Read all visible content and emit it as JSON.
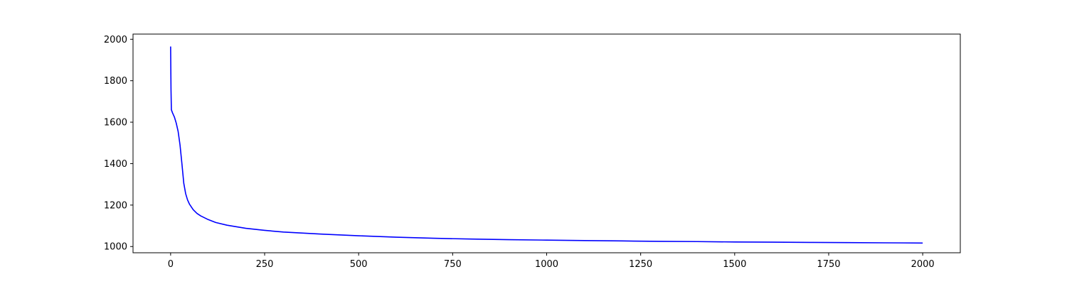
{
  "chart_data": {
    "type": "line",
    "title": "",
    "xlabel": "",
    "ylabel": "",
    "xlim": [
      -100,
      2100
    ],
    "ylim": [
      970,
      2025
    ],
    "grid": false,
    "x_ticks": [
      0,
      250,
      500,
      750,
      1000,
      1250,
      1500,
      1750,
      2000
    ],
    "y_ticks": [
      1000,
      1200,
      1400,
      1600,
      1800,
      2000
    ],
    "x_tick_labels": [
      "0",
      "250",
      "500",
      "750",
      "1000",
      "1250",
      "1500",
      "1750",
      "2000"
    ],
    "y_tick_labels": [
      "1000",
      "1200",
      "1400",
      "1600",
      "1800",
      "2000"
    ],
    "series": [
      {
        "color": "#0000ff",
        "x": [
          0,
          1,
          2,
          5,
          10,
          15,
          20,
          25,
          30,
          35,
          40,
          45,
          50,
          60,
          70,
          80,
          100,
          120,
          150,
          200,
          250,
          300,
          400,
          500,
          600,
          700,
          800,
          900,
          1000,
          1100,
          1200,
          1300,
          1400,
          1500,
          1600,
          1700,
          1800,
          1900,
          2000
        ],
        "y": [
          1965,
          1760,
          1660,
          1645,
          1625,
          1595,
          1555,
          1490,
          1400,
          1305,
          1255,
          1225,
          1205,
          1178,
          1160,
          1148,
          1130,
          1116,
          1103,
          1088,
          1078,
          1070,
          1060,
          1052,
          1045,
          1040,
          1036,
          1033,
          1031,
          1029,
          1027,
          1025,
          1024,
          1022,
          1021,
          1020,
          1019,
          1018,
          1017
        ]
      }
    ]
  }
}
